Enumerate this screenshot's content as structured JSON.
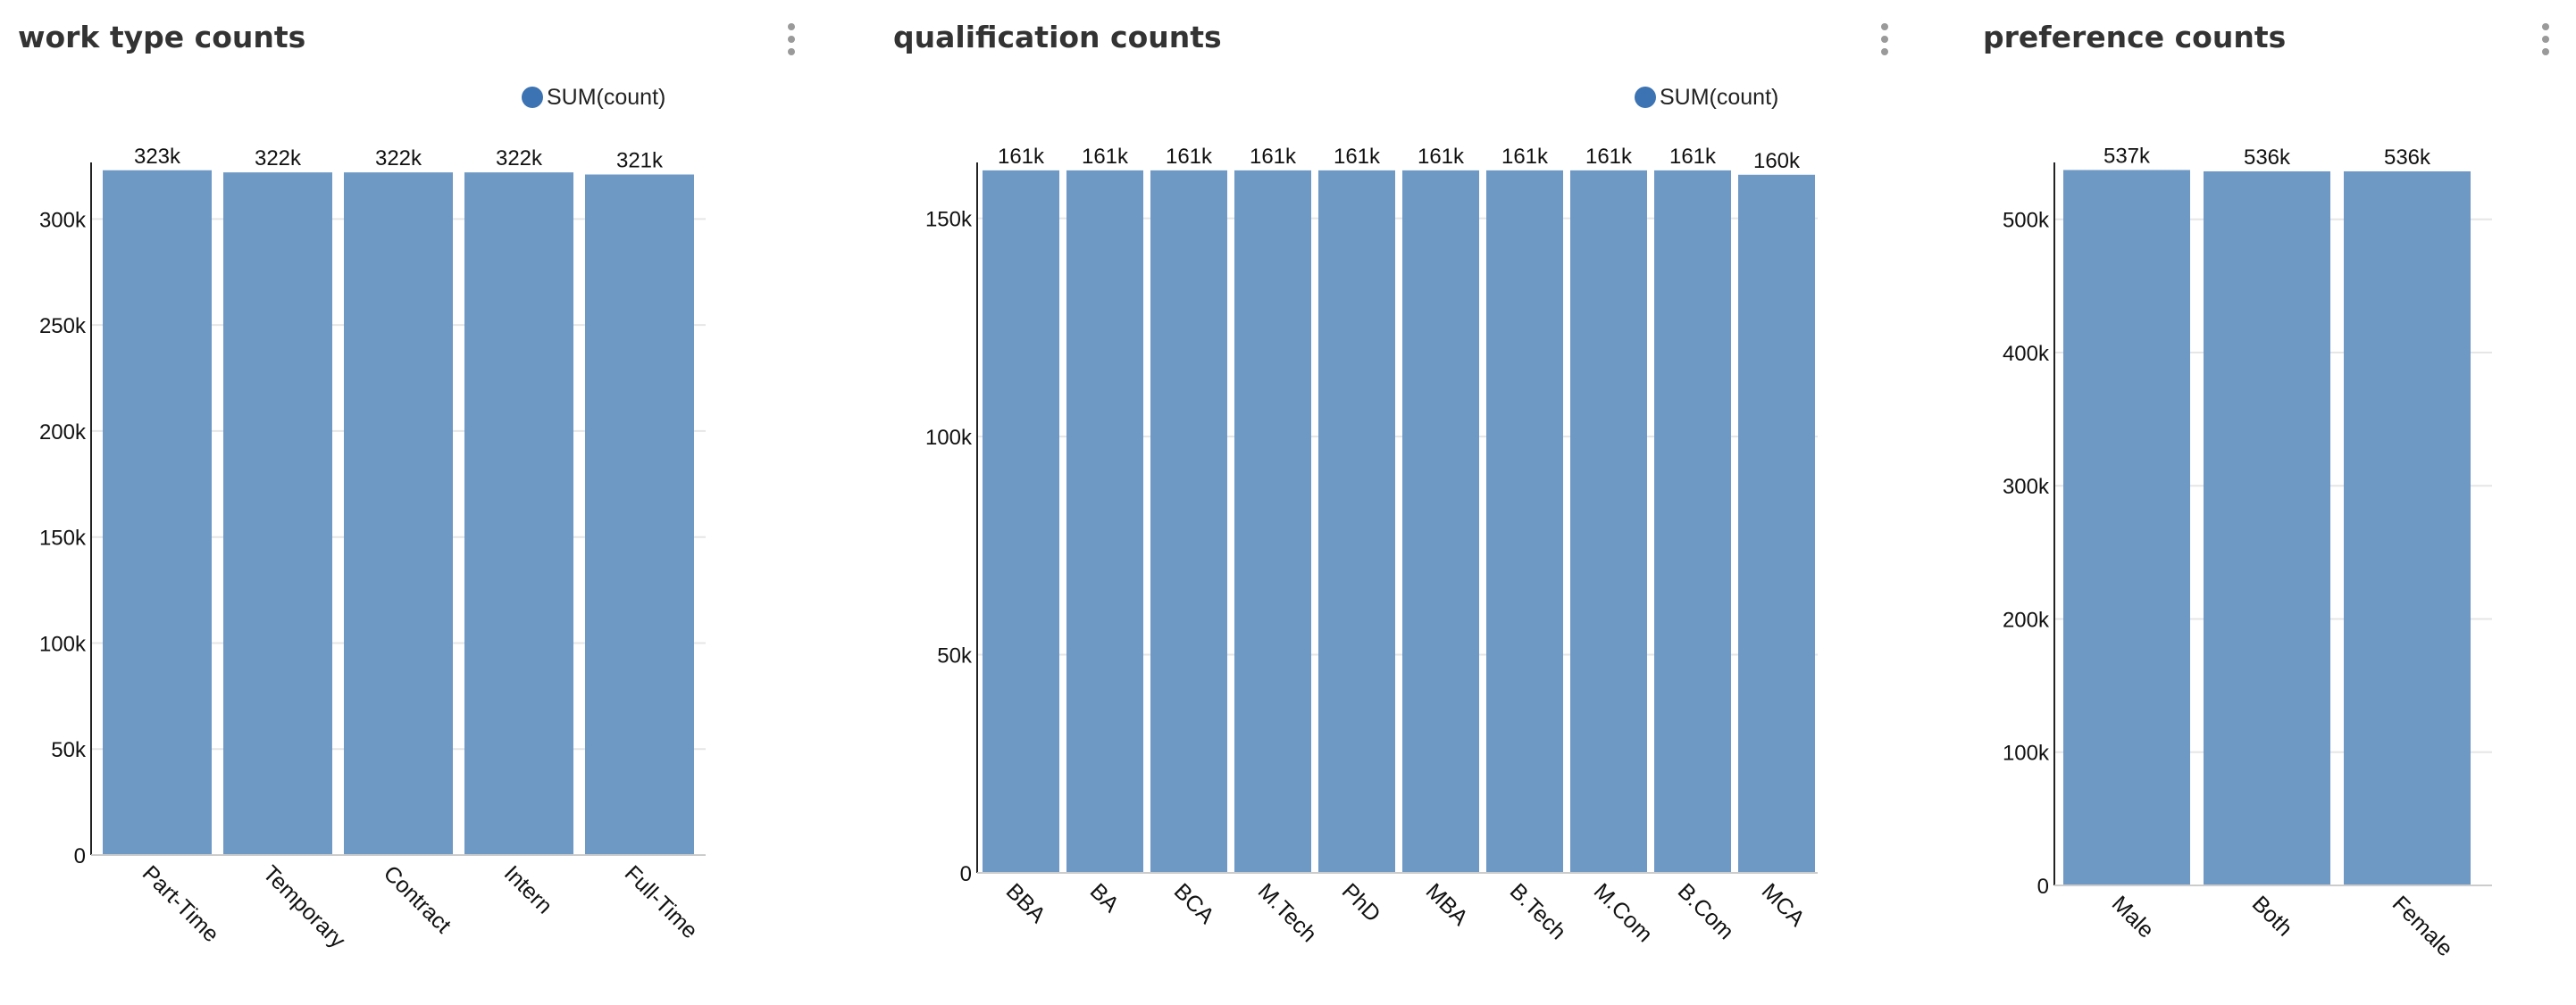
{
  "colors": {
    "bar": "#6f99c5",
    "legend_dot": "#3c73b2",
    "grid": "#e6e6e6",
    "axis": "#222222"
  },
  "panels": [
    {
      "title": "work type counts",
      "menu_icon": "kebab-menu-icon",
      "legend": "SUM(count)",
      "chart_data": {
        "type": "bar",
        "categories": [
          "Part-Time",
          "Temporary",
          "Contract",
          "Intern",
          "Full-Time"
        ],
        "values": [
          323000,
          322000,
          322000,
          322000,
          321000
        ],
        "value_labels": [
          "323k",
          "322k",
          "322k",
          "322k",
          "321k"
        ],
        "ylim": [
          0,
          325000
        ],
        "yticks": [
          0,
          50000,
          100000,
          150000,
          200000,
          250000,
          300000
        ],
        "ytick_labels": [
          "0",
          "50k",
          "100k",
          "150k",
          "200k",
          "250k",
          "300k"
        ],
        "grid": true,
        "legend_position": "top-right"
      }
    },
    {
      "title": "qualification counts",
      "menu_icon": "kebab-menu-icon",
      "legend": "SUM(count)",
      "chart_data": {
        "type": "bar",
        "categories": [
          "BBA",
          "BA",
          "BCA",
          "M.Tech",
          "PhD",
          "MBA",
          "B.Tech",
          "M.Com",
          "B.Com",
          "MCA"
        ],
        "values": [
          161000,
          161000,
          161000,
          161000,
          161000,
          161000,
          161000,
          161000,
          161000,
          160000
        ],
        "value_labels": [
          "161k",
          "161k",
          "161k",
          "161k",
          "161k",
          "161k",
          "161k",
          "161k",
          "161k",
          "160k"
        ],
        "ylim": [
          0,
          162000
        ],
        "yticks": [
          0,
          50000,
          100000,
          150000
        ],
        "ytick_labels": [
          "0",
          "50k",
          "100k",
          "150k"
        ],
        "grid": true,
        "legend_position": "top-right"
      }
    },
    {
      "title": "preference counts",
      "menu_icon": "kebab-menu-icon",
      "chart_data": {
        "type": "bar",
        "categories": [
          "Male",
          "Both",
          "Female"
        ],
        "values": [
          537000,
          536000,
          536000
        ],
        "value_labels": [
          "537k",
          "536k",
          "536k"
        ],
        "ylim": [
          0,
          540000
        ],
        "yticks": [
          0,
          100000,
          200000,
          300000,
          400000,
          500000
        ],
        "ytick_labels": [
          "0",
          "100k",
          "200k",
          "300k",
          "400k",
          "500k"
        ],
        "grid": true
      }
    }
  ]
}
